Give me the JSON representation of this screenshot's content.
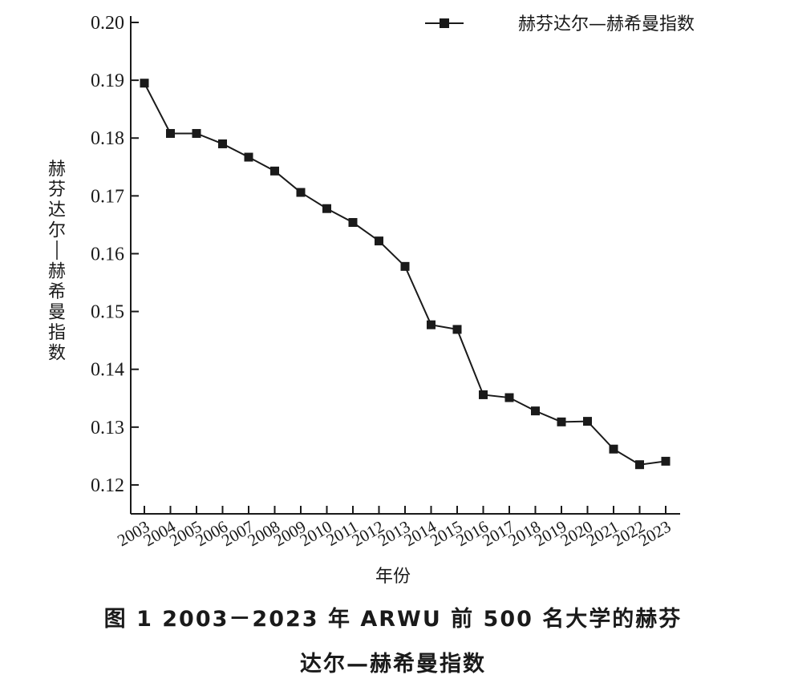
{
  "caption": {
    "line1": "图 1   2003－2023 年 ARWU 前 500 名大学的赫芬",
    "line2": "达尔—赫希曼指数"
  },
  "chart_data": {
    "type": "line",
    "title": "",
    "xlabel": "年份",
    "ylabel": "赫芬达尔—赫希曼指数",
    "categories": [
      "2003",
      "2004",
      "2005",
      "2006",
      "2007",
      "2008",
      "2009",
      "2010",
      "2011",
      "2012",
      "2013",
      "2014",
      "2015",
      "2016",
      "2017",
      "2018",
      "2019",
      "2020",
      "2021",
      "2022",
      "2023"
    ],
    "series": [
      {
        "name": "赫芬达尔—赫希曼指数",
        "values": [
          0.1895,
          0.1808,
          0.1808,
          0.179,
          0.1767,
          0.1743,
          0.1706,
          0.1678,
          0.1654,
          0.1622,
          0.1578,
          0.1477,
          0.1469,
          0.1356,
          0.1351,
          0.1328,
          0.1309,
          0.131,
          0.1262,
          0.1235,
          0.1241
        ],
        "color": "#1a1a1a",
        "marker": "square"
      }
    ],
    "y_ticks": [
      "0.12",
      "0.13",
      "0.14",
      "0.15",
      "0.16",
      "0.17",
      "0.18",
      "0.19",
      "0.20"
    ],
    "ylim": [
      0.115,
      0.2
    ],
    "grid": false,
    "legend_position": "top-right"
  }
}
